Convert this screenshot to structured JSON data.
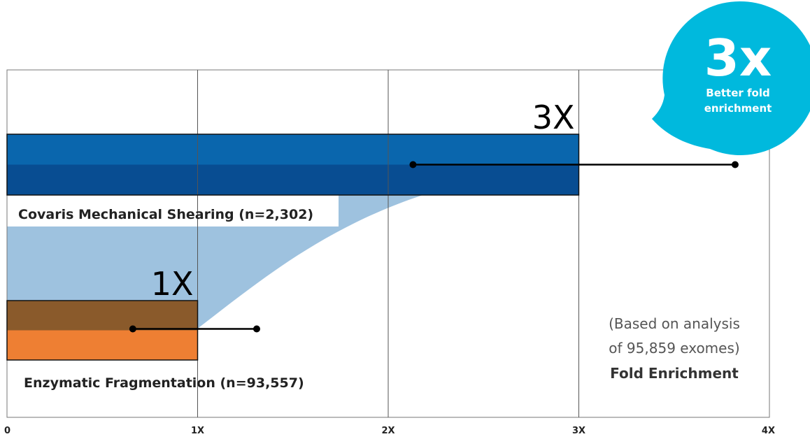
{
  "chart_data": {
    "type": "bar",
    "orientation": "horizontal",
    "xlim": [
      0,
      4
    ],
    "x_ticks": [
      {
        "value": 0,
        "label": "0"
      },
      {
        "value": 1,
        "label": "1X"
      },
      {
        "value": 2,
        "label": "2X"
      },
      {
        "value": 3,
        "label": "3X"
      },
      {
        "value": 4,
        "label": "4X"
      }
    ],
    "grid": true,
    "series": [
      {
        "name": "Covaris Mechanical Shearing (n=2,302)",
        "value": 3,
        "value_label": "3X",
        "range_line": [
          2.13,
          3.82
        ],
        "colors": {
          "upper": "#0a66ad",
          "lower": "#084d92"
        }
      },
      {
        "name": "Enzymatic Fragmentation (n=93,557)",
        "value": 1,
        "value_label": "1X",
        "range_line": [
          0.66,
          1.31
        ],
        "colors": {
          "upper": "#8a5a2b",
          "lower": "#ee7f33"
        }
      }
    ],
    "annotation": {
      "line1": "(Based on analysis",
      "line2": "of 95,859 exomes)",
      "line3": "Fold Enrichment"
    },
    "badge": {
      "big": "3x",
      "line1": "Better fold",
      "line2": "enrichment",
      "color": "#00b9dd"
    },
    "fill_color": "#9ec2df"
  }
}
